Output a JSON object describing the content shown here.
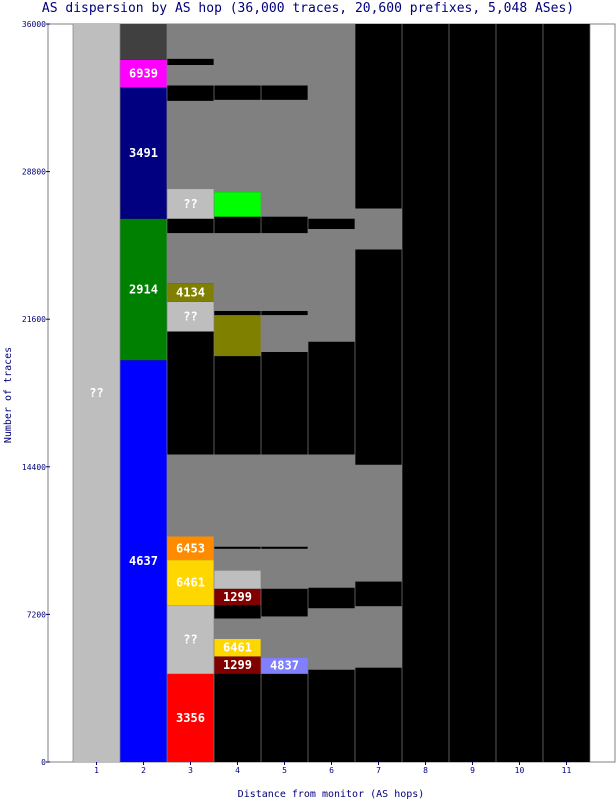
{
  "chart_data": {
    "type": "bar",
    "title": "AS dispersion by AS hop (36,000 traces, 20,600 prefixes, 5,048 ASes)",
    "xlabel": "Distance from monitor (AS hops)",
    "ylabel": "Number of traces",
    "ylim": [
      0,
      36000
    ],
    "y_ticks": [
      "0",
      "7200",
      "14400",
      "21600",
      "28800",
      "36000"
    ],
    "categories": [
      "1",
      "2",
      "3",
      "4",
      "5",
      "6",
      "7",
      "8",
      "9",
      "10",
      "11"
    ],
    "grid": false,
    "colors": {
      "background": "#000000",
      "frame": "#ffffff",
      "unknown": "#bebebe",
      "minor_band": "#808080",
      "dark_band": "#404040",
      "label_text": "#ffffff",
      "axis_text": "#00007a"
    },
    "segments": [
      {
        "hop": "1",
        "label": "??",
        "start": 0,
        "end": 36000,
        "color": "#bebebe",
        "text_color": "#ffffff"
      },
      {
        "hop": "2",
        "label": "4637",
        "start": 0,
        "end": 19600,
        "color": "#0000ff"
      },
      {
        "hop": "2",
        "label": "2914",
        "start": 19600,
        "end": 26500,
        "color": "#008000"
      },
      {
        "hop": "2",
        "label": "3491",
        "start": 26500,
        "end": 32900,
        "color": "#000080"
      },
      {
        "hop": "2",
        "label": "6939",
        "start": 32900,
        "end": 34250,
        "color": "#ff00ff"
      },
      {
        "hop": "2",
        "label": "",
        "start": 34250,
        "end": 36000,
        "color": "#404040"
      },
      {
        "hop": "3",
        "label": "3356",
        "start": 0,
        "end": 4300,
        "color": "#ff0000"
      },
      {
        "hop": "3",
        "label": "??",
        "start": 4300,
        "end": 7650,
        "color": "#bebebe"
      },
      {
        "hop": "3",
        "label": "6461",
        "start": 7650,
        "end": 9850,
        "color": "#ffd700"
      },
      {
        "hop": "3",
        "label": "6453",
        "start": 9850,
        "end": 11000,
        "color": "#ff8c00"
      },
      {
        "hop": "3",
        "label": "",
        "start": 11000,
        "end": 15000,
        "color": "#808080"
      },
      {
        "hop": "3",
        "label": "??",
        "start": 21000,
        "end": 22450,
        "color": "#bebebe"
      },
      {
        "hop": "3",
        "label": "4134",
        "start": 22450,
        "end": 23350,
        "color": "#808000"
      },
      {
        "hop": "3",
        "label": "",
        "start": 23350,
        "end": 25800,
        "color": "#808080"
      },
      {
        "hop": "3",
        "label": "??",
        "start": 26500,
        "end": 27950,
        "color": "#bebebe"
      },
      {
        "hop": "3",
        "label": "",
        "start": 27950,
        "end": 32250,
        "color": "#808080"
      },
      {
        "hop": "3",
        "label": "",
        "start": 33000,
        "end": 34000,
        "color": "#808080"
      },
      {
        "hop": "3",
        "label": "",
        "start": 34300,
        "end": 36000,
        "color": "#808080"
      },
      {
        "hop": "4",
        "label": "1299",
        "start": 4300,
        "end": 5150,
        "color": "#800000"
      },
      {
        "hop": "4",
        "label": "6461",
        "start": 5150,
        "end": 6000,
        "color": "#ffd700"
      },
      {
        "hop": "4",
        "label": "",
        "start": 6000,
        "end": 7000,
        "color": "#808080"
      },
      {
        "hop": "4",
        "label": "1299",
        "start": 7650,
        "end": 8450,
        "color": "#800000"
      },
      {
        "hop": "4",
        "label": "",
        "start": 8450,
        "end": 9350,
        "color": "#bebebe"
      },
      {
        "hop": "4",
        "label": "",
        "start": 9350,
        "end": 10400,
        "color": "#808080"
      },
      {
        "hop": "4",
        "label": "",
        "start": 10500,
        "end": 15000,
        "color": "#808080"
      },
      {
        "hop": "4",
        "label": "",
        "start": 19800,
        "end": 21800,
        "color": "#808000"
      },
      {
        "hop": "4",
        "label": "",
        "start": 22000,
        "end": 25800,
        "color": "#808080"
      },
      {
        "hop": "4",
        "label": "",
        "start": 26600,
        "end": 27800,
        "color": "#00ff00"
      },
      {
        "hop": "4",
        "label": "",
        "start": 27800,
        "end": 32300,
        "color": "#808080"
      },
      {
        "hop": "4",
        "label": "",
        "start": 33000,
        "end": 36000,
        "color": "#808080"
      },
      {
        "hop": "5",
        "label": "4837",
        "start": 4300,
        "end": 5100,
        "color": "#8080ff"
      },
      {
        "hop": "5",
        "label": "",
        "start": 5100,
        "end": 7100,
        "color": "#808080"
      },
      {
        "hop": "5",
        "label": "",
        "start": 8450,
        "end": 10400,
        "color": "#808080"
      },
      {
        "hop": "5",
        "label": "",
        "start": 10500,
        "end": 15000,
        "color": "#808080"
      },
      {
        "hop": "5",
        "label": "",
        "start": 20000,
        "end": 21800,
        "color": "#808080"
      },
      {
        "hop": "5",
        "label": "",
        "start": 22000,
        "end": 25800,
        "color": "#808080"
      },
      {
        "hop": "5",
        "label": "",
        "start": 26600,
        "end": 32300,
        "color": "#808080"
      },
      {
        "hop": "5",
        "label": "",
        "start": 33000,
        "end": 36000,
        "color": "#808080"
      },
      {
        "hop": "6",
        "label": "",
        "start": 4500,
        "end": 7500,
        "color": "#808080"
      },
      {
        "hop": "6",
        "label": "",
        "start": 8500,
        "end": 15000,
        "color": "#808080"
      },
      {
        "hop": "6",
        "label": "",
        "start": 20500,
        "end": 26000,
        "color": "#808080"
      },
      {
        "hop": "6",
        "label": "",
        "start": 26500,
        "end": 36000,
        "color": "#808080"
      },
      {
        "hop": "7",
        "label": "",
        "start": 4600,
        "end": 7600,
        "color": "#808080"
      },
      {
        "hop": "7",
        "label": "",
        "start": 8800,
        "end": 14500,
        "color": "#808080"
      },
      {
        "hop": "7",
        "label": "",
        "start": 25000,
        "end": 27000,
        "color": "#808080"
      }
    ]
  }
}
